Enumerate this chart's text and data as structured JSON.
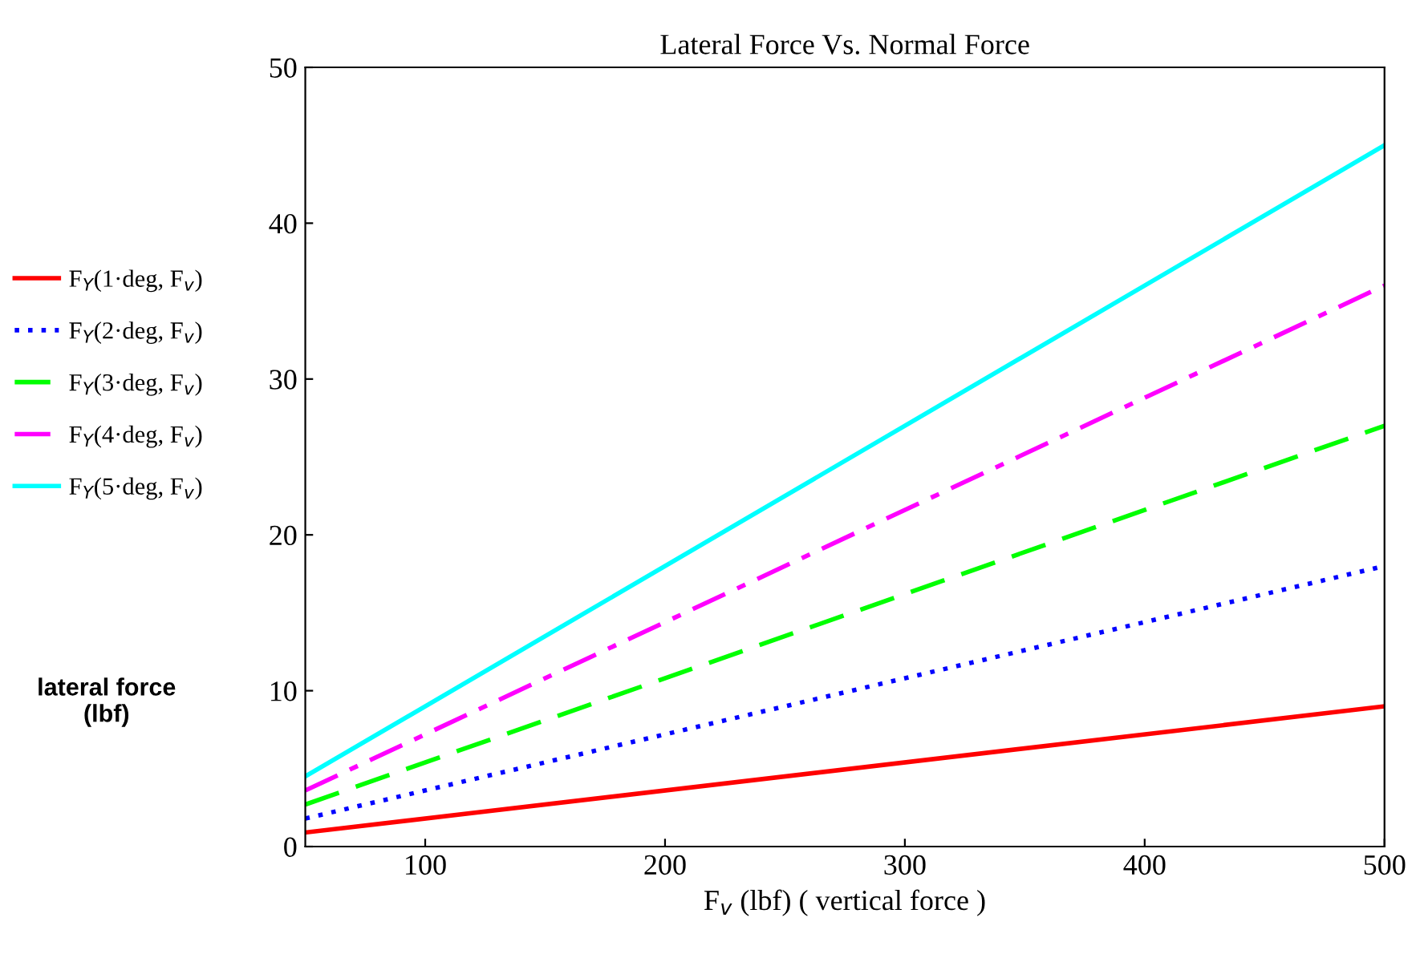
{
  "chart_data": {
    "type": "line",
    "title": "Lateral Force Vs. Normal Force",
    "xlabel": "F$_{v}$ (lbf) ( vertical force )",
    "ylabel": "lateral force\n(lbf)",
    "x": [
      50,
      500
    ],
    "series": [
      {
        "name": "F$_{Y}$(1·deg, F$_{v}$)",
        "color": "#ff0000",
        "line_style": "solid",
        "values": [
          0.9,
          9
        ]
      },
      {
        "name": "F$_{Y}$(2·deg, F$_{v}$)",
        "color": "#0000ff",
        "line_style": "dotted",
        "values": [
          1.8,
          18
        ]
      },
      {
        "name": "F$_{Y}$(3·deg, F$_{v}$)",
        "color": "#00ff00",
        "line_style": "dashed",
        "values": [
          2.7,
          27
        ]
      },
      {
        "name": "F$_{Y}$(4·deg, F$_{v}$)",
        "color": "#ff00ff",
        "line_style": "dashdot",
        "values": [
          3.6,
          36
        ]
      },
      {
        "name": "F$_{Y}$(5·deg, F$_{v}$)",
        "color": "#00ffff",
        "line_style": "solid",
        "values": [
          4.5,
          45
        ]
      }
    ],
    "xlim": [
      50,
      500
    ],
    "xticks": [
      100,
      200,
      300,
      400,
      500
    ],
    "ylim": [
      0,
      50
    ],
    "yticks": [
      0,
      10,
      20,
      30,
      40,
      50
    ],
    "grid": false,
    "legend": "left",
    "marker": "none"
  }
}
